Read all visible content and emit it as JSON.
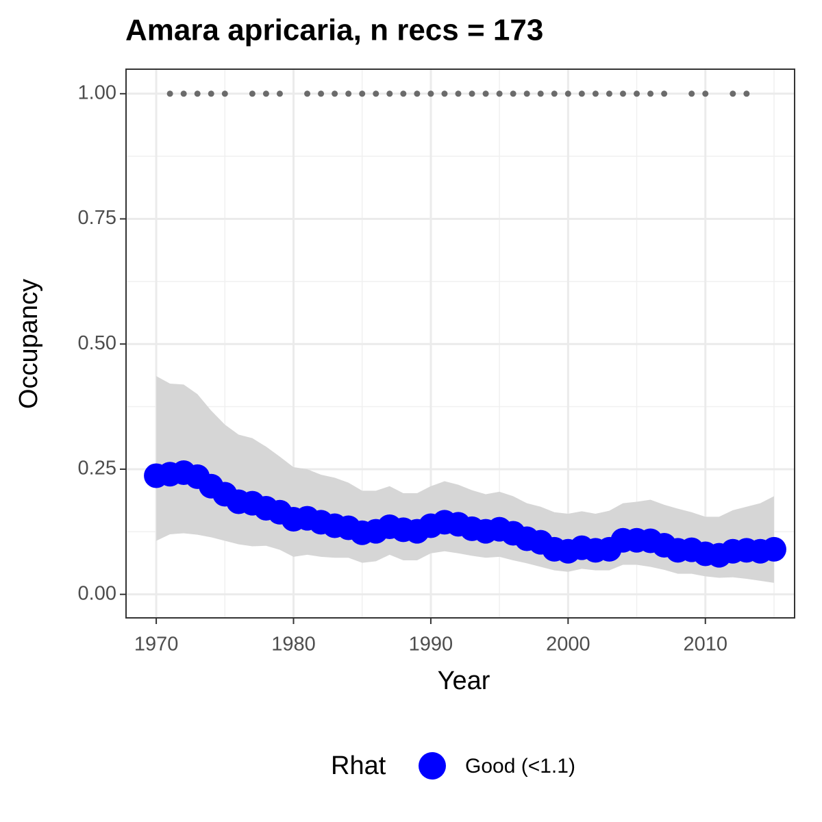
{
  "chart_data": {
    "type": "line",
    "title": "Amara apricaria, n recs = 173",
    "x_label": "Year",
    "y_label": "Occupancy",
    "legend_title": "Rhat",
    "legend_position": "bottom",
    "grid": true,
    "xlim": [
      1967.8,
      2016.5
    ],
    "ylim": [
      -0.047,
      1.049
    ],
    "xticks": [
      1970,
      1980,
      1990,
      2000,
      2010
    ],
    "yticks": [
      {
        "value": 0,
        "label": "0.00"
      },
      {
        "value": 0.25,
        "label": "0.25"
      },
      {
        "value": 0.5,
        "label": "0.50"
      },
      {
        "value": 0.75,
        "label": "0.75"
      },
      {
        "value": 1,
        "label": "1.00"
      }
    ],
    "x": [
      1970,
      1971,
      1972,
      1973,
      1974,
      1975,
      1976,
      1977,
      1978,
      1979,
      1980,
      1981,
      1982,
      1983,
      1984,
      1985,
      1986,
      1987,
      1988,
      1989,
      1990,
      1991,
      1992,
      1993,
      1994,
      1995,
      1996,
      1997,
      1998,
      1999,
      2000,
      2001,
      2002,
      2003,
      2004,
      2005,
      2006,
      2007,
      2008,
      2009,
      2010,
      2011,
      2012,
      2013,
      2014,
      2015
    ],
    "band_color": "#d6d6d6",
    "series": [
      {
        "name": "Good (<1.1)",
        "color": "#0000ff",
        "values": [
          0.237,
          0.24,
          0.243,
          0.235,
          0.216,
          0.2,
          0.185,
          0.182,
          0.172,
          0.164,
          0.15,
          0.152,
          0.144,
          0.137,
          0.133,
          0.123,
          0.126,
          0.135,
          0.129,
          0.126,
          0.137,
          0.144,
          0.14,
          0.131,
          0.126,
          0.13,
          0.122,
          0.111,
          0.104,
          0.09,
          0.086,
          0.093,
          0.088,
          0.09,
          0.108,
          0.108,
          0.107,
          0.098,
          0.088,
          0.089,
          0.081,
          0.078,
          0.086,
          0.088,
          0.086,
          0.09
        ],
        "lower": [
          0.107,
          0.12,
          0.122,
          0.119,
          0.114,
          0.107,
          0.1,
          0.096,
          0.097,
          0.089,
          0.075,
          0.079,
          0.075,
          0.073,
          0.073,
          0.063,
          0.066,
          0.079,
          0.068,
          0.068,
          0.082,
          0.086,
          0.082,
          0.077,
          0.073,
          0.075,
          0.068,
          0.062,
          0.055,
          0.048,
          0.045,
          0.051,
          0.048,
          0.048,
          0.059,
          0.059,
          0.055,
          0.049,
          0.041,
          0.041,
          0.036,
          0.033,
          0.034,
          0.031,
          0.027,
          0.023
        ],
        "upper": [
          0.436,
          0.421,
          0.419,
          0.4,
          0.367,
          0.339,
          0.319,
          0.312,
          0.295,
          0.275,
          0.254,
          0.25,
          0.239,
          0.233,
          0.223,
          0.207,
          0.207,
          0.216,
          0.202,
          0.202,
          0.216,
          0.226,
          0.219,
          0.208,
          0.2,
          0.205,
          0.196,
          0.182,
          0.175,
          0.164,
          0.161,
          0.166,
          0.161,
          0.167,
          0.182,
          0.185,
          0.189,
          0.179,
          0.171,
          0.164,
          0.155,
          0.155,
          0.168,
          0.175,
          0.182,
          0.196
        ]
      }
    ],
    "records": {
      "color": "#6b6b6b",
      "x": [
        1971,
        1972,
        1973,
        1974,
        1975,
        1977,
        1978,
        1979,
        1981,
        1982,
        1983,
        1984,
        1985,
        1986,
        1987,
        1988,
        1989,
        1990,
        1991,
        1992,
        1993,
        1994,
        1995,
        1996,
        1997,
        1998,
        1999,
        2000,
        2001,
        2002,
        2003,
        2004,
        2005,
        2006,
        2007,
        2009,
        2010,
        2012,
        2013
      ],
      "values": [
        1,
        1,
        1,
        1,
        1,
        1,
        1,
        1,
        1,
        1,
        1,
        1,
        1,
        1,
        1,
        1,
        1,
        1,
        1,
        1,
        1,
        1,
        1,
        1,
        1,
        1,
        1,
        1,
        1,
        1,
        1,
        1,
        1,
        1,
        1,
        1,
        1,
        1,
        1
      ]
    }
  }
}
